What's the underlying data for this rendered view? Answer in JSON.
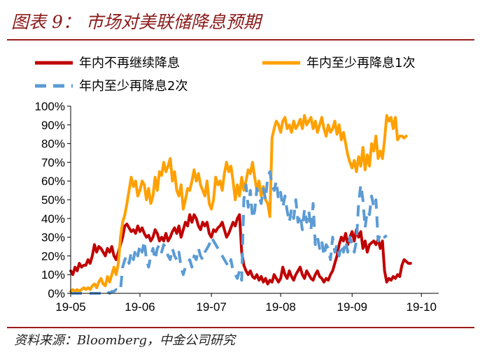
{
  "figure": {
    "title": "图表 9：  市场对美联储降息预期",
    "source": "资料来源：Bloomberg，中金公司研究"
  },
  "chart_data": {
    "type": "line",
    "title": "",
    "xlabel": "",
    "ylabel": "",
    "ylim": [
      0,
      100
    ],
    "y_unit": "%",
    "y_ticks": [
      "0%",
      "10%",
      "20%",
      "30%",
      "40%",
      "50%",
      "60%",
      "70%",
      "80%",
      "90%",
      "100%"
    ],
    "x_ticks": [
      "19-05",
      "19-06",
      "19-07",
      "19-08",
      "19-09",
      "19-10"
    ],
    "grid": false,
    "legend_position": "top",
    "series": [
      {
        "name": "年内不再继续降息",
        "color": "#c00000",
        "style": "solid",
        "x": [
          0,
          1,
          2,
          3,
          4,
          5,
          6,
          7,
          8,
          9,
          10,
          11,
          12,
          13,
          14,
          15,
          16,
          17,
          18,
          19,
          20,
          21,
          22,
          23,
          24,
          25,
          26,
          27,
          28,
          29,
          30,
          31,
          32,
          33,
          34,
          35,
          36,
          37,
          38,
          39,
          40,
          41,
          42,
          43,
          44,
          45,
          46,
          47,
          48,
          49,
          50,
          51,
          52,
          53,
          54,
          55,
          56,
          57,
          58,
          59,
          60,
          61,
          62,
          63,
          64,
          65,
          66,
          67,
          68,
          69,
          70,
          71,
          72,
          73,
          74,
          75,
          76,
          77,
          78,
          79,
          80,
          81,
          82,
          83,
          84,
          85,
          86,
          87,
          88,
          89,
          90,
          91,
          92,
          93,
          94,
          95,
          96,
          97,
          98,
          99,
          100,
          101,
          102,
          103,
          104,
          105,
          106,
          107,
          108,
          109,
          110,
          111,
          112,
          113,
          114,
          115,
          116,
          117,
          118,
          119,
          120,
          121,
          122,
          123,
          124,
          125,
          126,
          127,
          128,
          129,
          130,
          131,
          132,
          133,
          134,
          135,
          136,
          137,
          138,
          139,
          140,
          141,
          142,
          143,
          144,
          145,
          146,
          147,
          148,
          149,
          150,
          151,
          152,
          153,
          154,
          155,
          156,
          157,
          158,
          159,
          160,
          161,
          162,
          163,
          164,
          165,
          166,
          167,
          168,
          169,
          170
        ],
        "values": [
          12,
          10,
          14,
          12,
          16,
          14,
          15,
          15,
          18,
          16,
          20,
          26,
          22,
          25,
          24,
          22,
          20,
          24,
          22,
          25,
          20,
          18,
          22,
          26,
          30,
          36,
          37,
          35,
          33,
          34,
          32,
          36,
          33,
          35,
          32,
          30,
          31,
          28,
          30,
          34,
          32,
          28,
          30,
          28,
          32,
          28,
          30,
          33,
          35,
          32,
          36,
          30,
          34,
          38,
          36,
          42,
          38,
          42,
          40,
          36,
          34,
          38,
          36,
          38,
          32,
          30,
          34,
          33,
          35,
          36,
          38,
          34,
          30,
          32,
          35,
          38,
          36,
          40,
          42,
          22,
          15,
          12,
          10,
          12,
          9,
          8,
          10,
          7,
          9,
          6,
          8,
          5,
          7,
          6,
          10,
          8,
          6,
          8,
          14,
          10,
          8,
          12,
          9,
          7,
          10,
          12,
          14,
          10,
          8,
          12,
          10,
          8,
          7,
          10,
          12,
          9,
          8,
          6,
          8,
          7,
          10,
          12,
          16,
          20,
          26,
          30,
          28,
          32,
          26,
          30,
          33,
          28,
          34,
          30,
          33,
          24,
          28,
          22,
          26,
          27,
          28,
          26,
          29,
          24,
          28,
          12,
          6,
          8,
          7,
          9,
          8,
          10,
          9,
          15,
          18,
          17,
          16,
          16,
          null,
          null,
          null,
          null,
          null,
          null,
          null,
          null,
          null,
          null,
          null,
          null,
          null
        ]
      },
      {
        "name": "年内至少再降息1次",
        "color": "#ffa000",
        "style": "solid",
        "x": [
          0,
          1,
          2,
          3,
          4,
          5,
          6,
          7,
          8,
          9,
          10,
          11,
          12,
          13,
          14,
          15,
          16,
          17,
          18,
          19,
          20,
          21,
          22,
          23,
          24,
          25,
          26,
          27,
          28,
          29,
          30,
          31,
          32,
          33,
          34,
          35,
          36,
          37,
          38,
          39,
          40,
          41,
          42,
          43,
          44,
          45,
          46,
          47,
          48,
          49,
          50,
          51,
          52,
          53,
          54,
          55,
          56,
          57,
          58,
          59,
          60,
          61,
          62,
          63,
          64,
          65,
          66,
          67,
          68,
          69,
          70,
          71,
          72,
          73,
          74,
          75,
          76,
          77,
          78,
          79,
          80,
          81,
          82,
          83,
          84,
          85,
          86,
          87,
          88,
          89,
          90,
          91,
          92,
          93,
          94,
          95,
          96,
          97,
          98,
          99,
          100,
          101,
          102,
          103,
          104,
          105,
          106,
          107,
          108,
          109,
          110,
          111,
          112,
          113,
          114,
          115,
          116,
          117,
          118,
          119,
          120,
          121,
          122,
          123,
          124,
          125,
          126,
          127,
          128,
          129,
          130,
          131,
          132,
          133,
          134,
          135,
          136,
          137,
          138,
          139,
          140,
          141,
          142,
          143,
          144,
          145,
          146,
          147,
          148,
          149,
          150,
          151,
          152,
          153,
          154,
          155,
          156,
          157,
          158,
          159,
          160,
          161,
          162,
          163,
          164,
          165,
          166,
          167,
          168,
          169,
          170
        ],
        "values": [
          1,
          2,
          1,
          2,
          1,
          2,
          3,
          2,
          3,
          2,
          4,
          5,
          3,
          6,
          8,
          5,
          4,
          9,
          6,
          10,
          14,
          10,
          16,
          30,
          38,
          42,
          48,
          55,
          62,
          57,
          60,
          52,
          55,
          60,
          58,
          50,
          56,
          48,
          52,
          62,
          55,
          65,
          63,
          70,
          65,
          68,
          72,
          60,
          65,
          55,
          52,
          58,
          45,
          50,
          56,
          55,
          60,
          66,
          60,
          64,
          58,
          55,
          52,
          60,
          48,
          45,
          50,
          62,
          58,
          60,
          55,
          64,
          70,
          65,
          68,
          60,
          50,
          58,
          52,
          62,
          55,
          60,
          66,
          64,
          70,
          62,
          55,
          60,
          52,
          57,
          50,
          48,
          41,
          83,
          88,
          92,
          90,
          86,
          92,
          94,
          88,
          90,
          86,
          92,
          88,
          90,
          93,
          88,
          95,
          90,
          92,
          94,
          88,
          92,
          86,
          90,
          94,
          88,
          84,
          90,
          86,
          88,
          92,
          85,
          90,
          82,
          86,
          80,
          74,
          70,
          67,
          71,
          65,
          73,
          68,
          78,
          66,
          74,
          68,
          80,
          76,
          84,
          72,
          76,
          72,
          82,
          95,
          92,
          94,
          88,
          94,
          82,
          84,
          84,
          83,
          84,
          null,
          null,
          null,
          null,
          null,
          null,
          null,
          null,
          null,
          null,
          null,
          null,
          null,
          null,
          null
        ]
      },
      {
        "name": "年内至少再降息2次",
        "color": "#5b9bd5",
        "style": "dashed",
        "x": [
          0,
          1,
          2,
          3,
          4,
          5,
          6,
          7,
          8,
          9,
          10,
          11,
          12,
          13,
          14,
          15,
          16,
          17,
          18,
          19,
          20,
          21,
          22,
          23,
          24,
          25,
          26,
          27,
          28,
          29,
          30,
          31,
          32,
          33,
          34,
          35,
          36,
          37,
          38,
          39,
          40,
          41,
          42,
          43,
          44,
          45,
          46,
          47,
          48,
          49,
          50,
          51,
          52,
          53,
          54,
          55,
          56,
          57,
          58,
          59,
          60,
          61,
          62,
          63,
          64,
          65,
          66,
          67,
          68,
          69,
          70,
          71,
          72,
          73,
          74,
          75,
          76,
          77,
          78,
          79,
          80,
          81,
          82,
          83,
          84,
          85,
          86,
          87,
          88,
          89,
          90,
          91,
          92,
          93,
          94,
          95,
          96,
          97,
          98,
          99,
          100,
          101,
          102,
          103,
          104,
          105,
          106,
          107,
          108,
          109,
          110,
          111,
          112,
          113,
          114,
          115,
          116,
          117,
          118,
          119,
          120,
          121,
          122,
          123,
          124,
          125,
          126,
          127,
          128,
          129,
          130,
          131,
          132,
          133,
          134,
          135,
          136,
          137,
          138,
          139,
          140,
          141,
          142,
          143,
          144,
          145,
          146,
          147,
          148,
          149,
          150,
          151,
          152,
          153,
          154,
          155,
          156,
          157,
          158,
          159,
          160,
          161,
          162,
          163,
          164,
          165,
          166,
          167,
          168,
          169,
          170
        ],
        "values": [
          0,
          0,
          0,
          0,
          0,
          0,
          0,
          0,
          0,
          0,
          0,
          0,
          0,
          0,
          0,
          0,
          0,
          1,
          0,
          1,
          1,
          2,
          1,
          2,
          14,
          18,
          20,
          16,
          22,
          18,
          24,
          20,
          26,
          22,
          28,
          18,
          14,
          20,
          24,
          18,
          24,
          26,
          22,
          26,
          24,
          20,
          18,
          24,
          20,
          18,
          22,
          14,
          10,
          14,
          16,
          18,
          14,
          20,
          18,
          24,
          20,
          18,
          22,
          24,
          26,
          30,
          28,
          26,
          24,
          22,
          20,
          18,
          16,
          14,
          18,
          12,
          10,
          8,
          12,
          7,
          50,
          58,
          46,
          55,
          40,
          44,
          56,
          52,
          48,
          56,
          50,
          62,
          65,
          58,
          55,
          60,
          50,
          54,
          46,
          52,
          44,
          38,
          45,
          40,
          50,
          38,
          42,
          34,
          45,
          38,
          44,
          34,
          48,
          26,
          30,
          24,
          28,
          20,
          26,
          24,
          18,
          30,
          22,
          26,
          20,
          26,
          22,
          28,
          22,
          30,
          26,
          22,
          28,
          48,
          58,
          50,
          35,
          44,
          42,
          52,
          46,
          50,
          28,
          32,
          30,
          30,
          31,
          null,
          null,
          null,
          null,
          null,
          null,
          null,
          null,
          null,
          null,
          null,
          null,
          null,
          null,
          null,
          null,
          null,
          null,
          null,
          null,
          null,
          null,
          null,
          null
        ]
      }
    ]
  }
}
